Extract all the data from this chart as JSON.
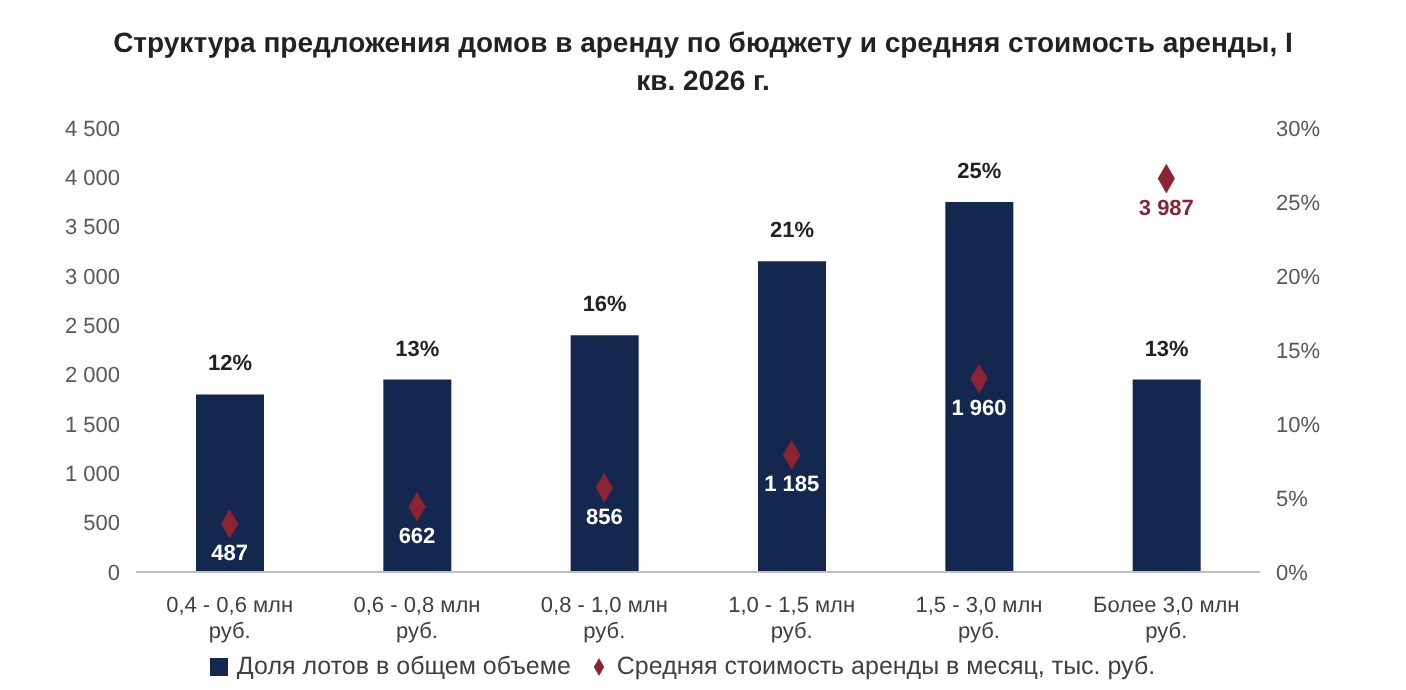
{
  "chart_data": {
    "type": "bar",
    "title": "Структура предложения домов в аренду по бюджету и средняя стоимость аренды, I кв. 2026 г.",
    "categories": [
      "0,4 - 0,6 млн руб.",
      "0,6 - 0,8 млн руб.",
      "0,8 - 1,0 млн руб.",
      "1,0 - 1,5 млн руб.",
      "1,5 - 3,0 млн руб.",
      "Более 3,0 млн руб."
    ],
    "series": [
      {
        "name": "Доля лотов в общем объеме",
        "axis": "y2",
        "color": "#14274e",
        "values": [
          12,
          13,
          16,
          21,
          25,
          13
        ],
        "value_labels": [
          "12%",
          "13%",
          "16%",
          "21%",
          "25%",
          "13%"
        ]
      },
      {
        "name": "Средняя стоимость аренды в месяц, тыс. руб.",
        "type": "scatter",
        "axis": "y",
        "color": "#8b2332",
        "values": [
          487,
          662,
          856,
          1185,
          1960,
          3987
        ],
        "value_labels": [
          "487",
          "662",
          "856",
          "1 185",
          "1 960",
          "3 987"
        ]
      }
    ],
    "ylim": [
      0,
      4500
    ],
    "yticks": [
      0,
      {
        "value": 500,
        "label": "500"
      },
      {
        "value": 1000,
        "label": "1 000"
      },
      {
        "value": 1500,
        "label": "1 500"
      },
      {
        "value": 2000,
        "label": "2 000"
      },
      {
        "value": 2500,
        "label": "2 500"
      },
      {
        "value": 3000,
        "label": "3 000"
      },
      {
        "value": 3500,
        "label": "3 500"
      },
      {
        "value": 4000,
        "label": "4 000"
      },
      {
        "value": 4500,
        "label": "4 500"
      }
    ],
    "y2lim": [
      0,
      30
    ],
    "y2ticks": [
      {
        "value": 0,
        "label": "0%"
      },
      {
        "value": 5,
        "label": "5%"
      },
      {
        "value": 10,
        "label": "10%"
      },
      {
        "value": 15,
        "label": "15%"
      },
      {
        "value": 20,
        "label": "20%"
      },
      {
        "value": 25,
        "label": "25%"
      },
      {
        "value": 30,
        "label": "30%"
      }
    ],
    "marker": "diamond",
    "legend": "bottom",
    "grid": false
  }
}
